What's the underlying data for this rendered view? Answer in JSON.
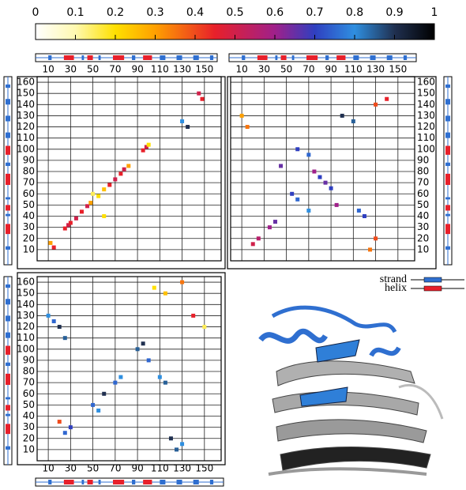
{
  "chart_data": [
    {
      "type": "colorbar",
      "xlim": [
        0,
        1
      ],
      "xticks": [
        0,
        0.1,
        0.2,
        0.3,
        0.4,
        0.5,
        0.6,
        0.7,
        0.8,
        0.9,
        1
      ]
    },
    {
      "type": "scatter",
      "xlim": [
        0,
        165
      ],
      "ylim": [
        0,
        165
      ],
      "xticks": [
        10,
        30,
        50,
        70,
        90,
        110,
        130,
        150
      ],
      "yticks": [
        10,
        20,
        30,
        40,
        50,
        60,
        70,
        80,
        90,
        100,
        110,
        120,
        130,
        140,
        150,
        160
      ],
      "x": [
        25,
        28,
        30,
        35,
        40,
        45,
        48,
        55,
        60,
        65,
        70,
        75,
        78,
        82,
        95,
        98,
        100,
        145,
        148,
        135,
        130,
        12,
        15,
        50,
        60
      ],
      "y": [
        29,
        32,
        34,
        38,
        44,
        49,
        52,
        58,
        64,
        68,
        73,
        78,
        82,
        85,
        99,
        102,
        104,
        150,
        145,
        120,
        125,
        16,
        12,
        60,
        40
      ],
      "values": [
        0.45,
        0.5,
        0.45,
        0.5,
        0.45,
        0.5,
        0.3,
        0.2,
        0.25,
        0.45,
        0.5,
        0.45,
        0.5,
        0.3,
        0.45,
        0.5,
        0.2,
        0.5,
        0.45,
        0.9,
        0.8,
        0.3,
        0.45,
        0.15,
        0.2
      ]
    },
    {
      "type": "scatter",
      "xlim": [
        0,
        165
      ],
      "ylim": [
        0,
        165
      ],
      "xticks": [
        10,
        30,
        50,
        70,
        90,
        110,
        130,
        150
      ],
      "yticks": [
        10,
        20,
        30,
        40,
        50,
        60,
        70,
        80,
        90,
        100,
        110,
        120,
        130,
        140,
        150,
        160
      ],
      "x": [
        60,
        70,
        75,
        80,
        85,
        90,
        60,
        70,
        55,
        40,
        35,
        120,
        115,
        10,
        15,
        130,
        140,
        125,
        130,
        20,
        25,
        100,
        110,
        95,
        45
      ],
      "y": [
        100,
        95,
        80,
        75,
        70,
        65,
        55,
        45,
        60,
        35,
        30,
        40,
        45,
        130,
        120,
        140,
        145,
        10,
        20,
        15,
        20,
        130,
        125,
        50,
        85
      ],
      "values": [
        0.7,
        0.75,
        0.6,
        0.7,
        0.65,
        0.7,
        0.75,
        0.8,
        0.7,
        0.65,
        0.6,
        0.7,
        0.75,
        0.3,
        0.35,
        0.4,
        0.45,
        0.35,
        0.4,
        0.5,
        0.55,
        0.9,
        0.85,
        0.6,
        0.65
      ]
    },
    {
      "type": "scatter",
      "xlim": [
        0,
        165
      ],
      "ylim": [
        0,
        165
      ],
      "xticks": [
        10,
        30,
        50,
        70,
        90,
        110,
        130,
        150
      ],
      "yticks": [
        10,
        20,
        30,
        40,
        50,
        60,
        70,
        80,
        90,
        100,
        110,
        120,
        130,
        140,
        150,
        160
      ],
      "x": [
        10,
        15,
        20,
        25,
        50,
        55,
        60,
        70,
        75,
        90,
        95,
        100,
        110,
        115,
        30,
        25,
        120,
        130,
        125,
        105,
        115,
        130,
        150,
        140,
        20
      ],
      "y": [
        130,
        125,
        120,
        110,
        50,
        45,
        60,
        70,
        75,
        100,
        105,
        90,
        75,
        70,
        30,
        25,
        20,
        15,
        10,
        155,
        150,
        160,
        120,
        130,
        35
      ],
      "values": [
        0.8,
        0.75,
        0.9,
        0.85,
        0.75,
        0.8,
        0.9,
        0.75,
        0.8,
        0.85,
        0.9,
        0.75,
        0.8,
        0.85,
        0.7,
        0.75,
        0.9,
        0.8,
        0.85,
        0.2,
        0.25,
        0.35,
        0.15,
        0.45,
        0.4
      ]
    }
  ],
  "legend": [
    {
      "name": "strand",
      "color": "#2f6fd0"
    },
    {
      "name": "helix",
      "color": "#e8202a"
    }
  ],
  "secondary_structure": {
    "helix": [
      [
        24,
        33
      ],
      [
        45,
        50
      ],
      [
        68,
        78
      ],
      [
        95,
        103
      ]
    ],
    "strand": [
      [
        10,
        13
      ],
      [
        40,
        42
      ],
      [
        55,
        57
      ],
      [
        85,
        88
      ],
      [
        110,
        115
      ],
      [
        125,
        130
      ],
      [
        140,
        145
      ],
      [
        155,
        158
      ]
    ]
  }
}
